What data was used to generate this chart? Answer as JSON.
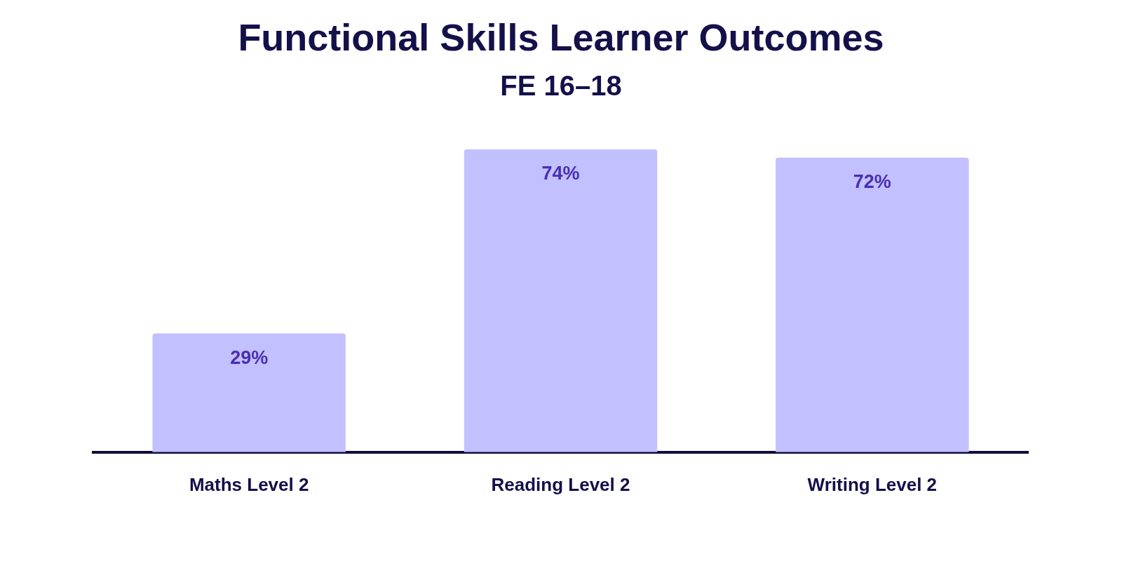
{
  "chart_data": {
    "type": "bar",
    "title": "Functional Skills Learner Outcomes",
    "subtitle": "FE 16–18",
    "categories": [
      "Maths Level 2",
      "Reading Level 2",
      "Writing Level 2"
    ],
    "values": [
      29,
      74,
      72
    ],
    "color": "#c2c0fe",
    "data_labels": true,
    "value_labels": [
      "29%",
      "74%",
      "72%"
    ],
    "grid": false,
    "legend": false,
    "tick_labels": "x"
  }
}
